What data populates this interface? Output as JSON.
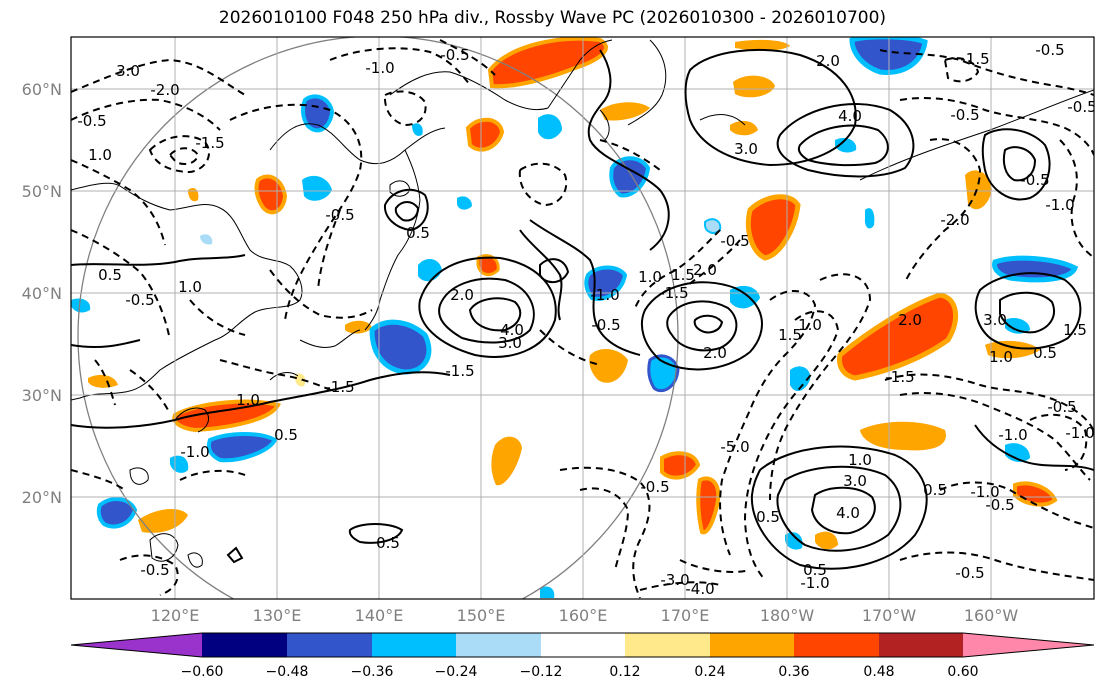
{
  "title": "2026010100 F048 250 hPa div., Rossby Wave PC (2026010300 - 2026010700)",
  "latitude_labels": [
    "60°N",
    "50°N",
    "40°N",
    "30°N",
    "20°N"
  ],
  "longitude_labels": [
    "120°E",
    "130°E",
    "140°E",
    "150°E",
    "160°E",
    "170°E",
    "180°W",
    "170°W",
    "160°W"
  ],
  "colorbar": {
    "colors": [
      "#9933cc",
      "#000080",
      "#3355cc",
      "#00bfff",
      "#aadcf8",
      "#ffffff",
      "#ffe98a",
      "#ffa500",
      "#ff4500",
      "#b22222",
      "#ff88aa"
    ],
    "tick_labels": [
      "−0.60",
      "−0.48",
      "−0.36",
      "−0.24",
      "−0.12",
      "0.12",
      "0.24",
      "0.36",
      "0.48",
      "0.60"
    ]
  },
  "contour_labels": [
    "3.0",
    "-2.0",
    "-1.0",
    "-0.5",
    "-0.5",
    "2.0",
    "-0.5",
    "-1.5",
    "4.0",
    "3.0",
    "-0.5",
    "1.0",
    "-1.5",
    "0.5",
    "-0.5",
    "-1.0",
    "-0.5",
    "-0.5",
    "-2.0",
    "0.5",
    "-0.5",
    "1.0",
    "2.0",
    "4.0",
    "3.0",
    "-1.0",
    "-0.5",
    "-1.5",
    "1.0",
    "1.5",
    "2.0",
    "-0.5",
    "1.5",
    "2.0",
    "1.0",
    "3.0",
    "1.5",
    "0.5",
    "-1.5",
    "2.0",
    "1.0",
    "-0.5",
    "-1.0",
    "0.5",
    "-1.5",
    "1.0",
    "-1.5",
    "-5.0",
    "-1.0",
    "3.0",
    "1.0",
    "4.0",
    "-0.5",
    "0.5",
    "-1.0",
    "0.5",
    "-1.0",
    "0.5",
    "-3.0",
    "-4.0",
    "-1.0",
    "-0.5",
    "-0.5",
    "0.5",
    "-0.5"
  ]
}
